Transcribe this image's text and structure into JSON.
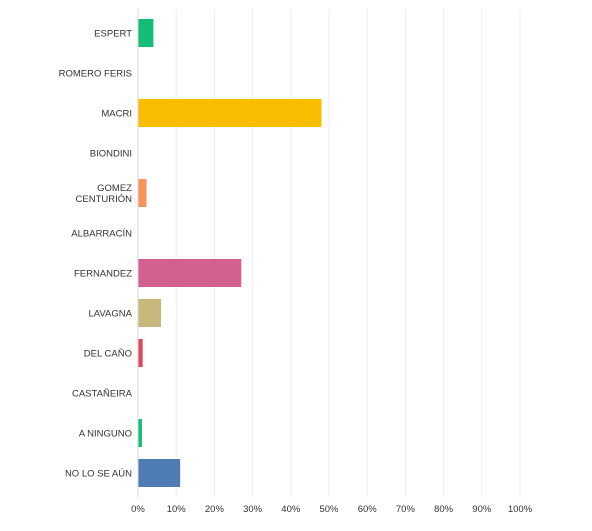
{
  "chart_data": {
    "type": "bar",
    "orientation": "horizontal",
    "categories": [
      "ESPERT",
      "ROMERO FERIS",
      "MACRI",
      "BIONDINI",
      "GOMEZ CENTURIÓN",
      "ALBARRACÍN",
      "FERNANDEZ",
      "LAVAGNA",
      "DEL CAÑO",
      "CASTAÑEIRA",
      "A NINGUNO",
      "NO LO SE AÚN"
    ],
    "category_lines": [
      [
        "ESPERT"
      ],
      [
        "ROMERO FERIS"
      ],
      [
        "MACRI"
      ],
      [
        "BIONDINI"
      ],
      [
        "GOMEZ",
        "CENTURIÓN"
      ],
      [
        "ALBARRACÍN"
      ],
      [
        "FERNANDEZ"
      ],
      [
        "LAVAGNA"
      ],
      [
        "DEL CAÑO"
      ],
      [
        "CASTAÑEIRA"
      ],
      [
        "A NINGUNO"
      ],
      [
        "NO LO SE AÚN"
      ]
    ],
    "values": [
      3.9,
      0,
      47.9,
      0,
      2.1,
      0,
      26.9,
      5.9,
      1.1,
      0,
      0.9,
      10.9
    ],
    "colors": [
      "#13bd75",
      "#cccccc",
      "#f9be00",
      "#cccccc",
      "#f7945c",
      "#cccccc",
      "#d25f90",
      "#c9b87b",
      "#e0475a",
      "#cccccc",
      "#13bd75",
      "#507cb6"
    ],
    "xlim": [
      0,
      100
    ],
    "x_ticks": [
      "0%",
      "10%",
      "20%",
      "30%",
      "40%",
      "50%",
      "60%",
      "70%",
      "80%",
      "90%",
      "100%"
    ],
    "grid": true,
    "legend": "none"
  }
}
